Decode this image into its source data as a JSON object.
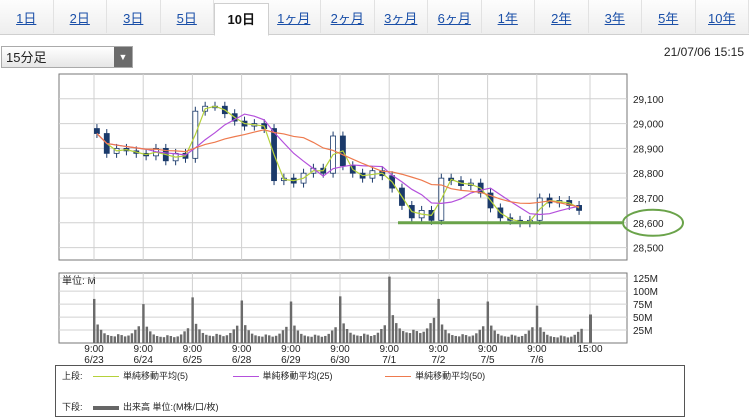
{
  "tabs": [
    {
      "label": "1日",
      "active": false
    },
    {
      "label": "2日",
      "active": false
    },
    {
      "label": "3日",
      "active": false
    },
    {
      "label": "5日",
      "active": false
    },
    {
      "label": "10日",
      "active": true
    },
    {
      "label": "1ヶ月",
      "active": false
    },
    {
      "label": "2ヶ月",
      "active": false
    },
    {
      "label": "3ヶ月",
      "active": false
    },
    {
      "label": "6ヶ月",
      "active": false
    },
    {
      "label": "1年",
      "active": false
    },
    {
      "label": "2年",
      "active": false
    },
    {
      "label": "3年",
      "active": false
    },
    {
      "label": "5年",
      "active": false
    },
    {
      "label": "10年",
      "active": false
    }
  ],
  "interval_select": {
    "value": "15分足"
  },
  "timestamp": "21/07/06 15:15",
  "chart_data": [
    {
      "type": "candlestick",
      "x_ticks": [
        {
          "time": "9:00",
          "date": "6/23"
        },
        {
          "time": "9:00",
          "date": "6/24"
        },
        {
          "time": "9:00",
          "date": "6/25"
        },
        {
          "time": "9:00",
          "date": "6/28"
        },
        {
          "time": "9:00",
          "date": "6/29"
        },
        {
          "time": "9:00",
          "date": "6/30"
        },
        {
          "time": "9:00",
          "date": "7/1"
        },
        {
          "time": "9:00",
          "date": "7/2"
        },
        {
          "time": "9:00",
          "date": "7/5"
        },
        {
          "time": "9:00",
          "date": "7/6"
        },
        {
          "time": "15:00",
          "date": ""
        }
      ],
      "y_ticks": [
        "29,100",
        "29,000",
        "28,900",
        "28,800",
        "28,700",
        "28,600",
        "28,500"
      ],
      "ylim": [
        28450,
        29200
      ],
      "closes": [
        28960,
        28880,
        28900,
        28890,
        28880,
        28870,
        28900,
        28850,
        28880,
        28860,
        29050,
        29070,
        29070,
        29040,
        29010,
        28990,
        29000,
        28980,
        28770,
        28780,
        28760,
        28800,
        28820,
        28800,
        28950,
        28830,
        28800,
        28780,
        28810,
        28790,
        28740,
        28670,
        28620,
        28650,
        28610,
        28780,
        28770,
        28750,
        28760,
        28720,
        28660,
        28620,
        28610,
        28600,
        28610,
        28700,
        28680,
        28690,
        28670,
        28650
      ],
      "series": [
        {
          "name": "単純移動平均(5)",
          "color": "#b5d13a"
        },
        {
          "name": "単純移動平均(25)",
          "color": "#b450dc"
        },
        {
          "name": "単純移動平均(50)",
          "color": "#ee7a4e"
        }
      ],
      "highlight": {
        "value": 28600,
        "label": "28,600"
      },
      "grid": true
    },
    {
      "type": "bar",
      "title": "単位: M",
      "y_ticks": [
        "125M",
        "100M",
        "75M",
        "50M",
        "25M"
      ],
      "ylim": [
        0,
        135
      ],
      "session_open_volumes": [
        85,
        75,
        88,
        82,
        80,
        90,
        128,
        85,
        80,
        72,
        55
      ],
      "grid": true
    }
  ],
  "legend": {
    "upper_label": "上段:",
    "lower_label": "下段:",
    "volume_label": "出来高 単位:(M株/口/枚)"
  }
}
